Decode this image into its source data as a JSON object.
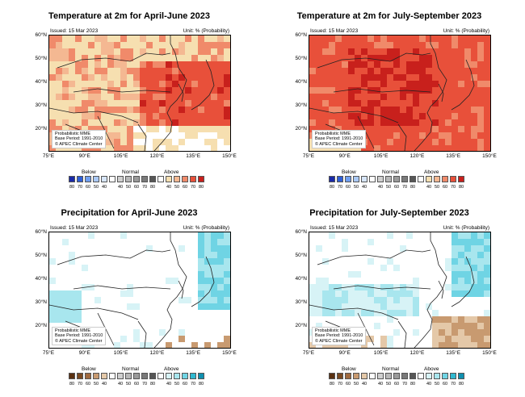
{
  "panels": [
    {
      "title": "Temperature at 2m for April-June 2023",
      "issued": "Issued: 15 Mar 2023",
      "unit": "Unit: % (Probability)",
      "note": [
        "Probabilistic MME",
        "Base Period: 1991-2010",
        "© APEC Climate Center"
      ],
      "type": "temp",
      "base": "#f6dfb0",
      "legend_colors": [
        "#1a2aa8",
        "#2f5fd8",
        "#6f9ef0",
        "#a9c8f5",
        "#d7e6fa",
        "#ffffff",
        "#d0d0d0",
        "#b8b8b8",
        "#9a9a9a",
        "#7a7a7a",
        "#565656",
        "#ffffff",
        "#f6dfb0",
        "#f4b892",
        "#f08a6a",
        "#e8503a",
        "#c8201c"
      ]
    },
    {
      "title": "Temperature at 2m for July-September 2023",
      "issued": "Issued: 15 Mar 2023",
      "unit": "Unit: % (Probability)",
      "note": [
        "Probabilistic MME",
        "Base Period: 1991-2010",
        "© APEC Climate Center"
      ],
      "type": "temp2",
      "base": "#e8503a",
      "legend_colors": [
        "#1a2aa8",
        "#2f5fd8",
        "#6f9ef0",
        "#a9c8f5",
        "#d7e6fa",
        "#ffffff",
        "#d0d0d0",
        "#b8b8b8",
        "#9a9a9a",
        "#7a7a7a",
        "#565656",
        "#ffffff",
        "#f6dfb0",
        "#f4b892",
        "#f08a6a",
        "#e8503a",
        "#c8201c"
      ]
    },
    {
      "title": "Precipitation for April-June 2023",
      "issued": "Issued: 15 Mar 2023",
      "unit": "Unit: % (Probability)",
      "note": [
        "Probabilistic MME",
        "Base Period: 1991-2010",
        "© APEC Climate Center"
      ],
      "type": "prcp",
      "base": "#ffffff",
      "legend_colors": [
        "#5a3010",
        "#7a4a22",
        "#a06a40",
        "#c89a70",
        "#e4c8a8",
        "#ffffff",
        "#d0d0d0",
        "#b8b8b8",
        "#9a9a9a",
        "#7a7a7a",
        "#565656",
        "#ffffff",
        "#d7f3f6",
        "#a8e6ee",
        "#6fd4e4",
        "#30b8d0",
        "#1090b0"
      ]
    },
    {
      "title": "Precipitation for July-September 2023",
      "issued": "Issued: 15 Mar 2023",
      "unit": "Unit: % (Probability)",
      "note": [
        "Probabilistic MME",
        "Base Period: 1991-2010",
        "© APEC Climate Center"
      ],
      "type": "prcp2",
      "base": "#ffffff",
      "legend_colors": [
        "#5a3010",
        "#7a4a22",
        "#a06a40",
        "#c89a70",
        "#e4c8a8",
        "#ffffff",
        "#d0d0d0",
        "#b8b8b8",
        "#9a9a9a",
        "#7a7a7a",
        "#565656",
        "#ffffff",
        "#d7f3f6",
        "#a8e6ee",
        "#6fd4e4",
        "#30b8d0",
        "#1090b0"
      ]
    }
  ],
  "lat_ticks": [
    "60°N",
    "50°N",
    "40°N",
    "30°N",
    "20°N"
  ],
  "lon_ticks": [
    "75°E",
    "90°E",
    "105°E",
    "120°E",
    "135°E",
    "150°E"
  ],
  "legend": {
    "below": "Below",
    "normal": "Normal",
    "above": "Above",
    "labels": [
      "80",
      "70",
      "60",
      "50",
      "40",
      "",
      "40",
      "50",
      "60",
      "70",
      "80",
      "",
      "40",
      "50",
      "60",
      "70",
      "80"
    ]
  }
}
